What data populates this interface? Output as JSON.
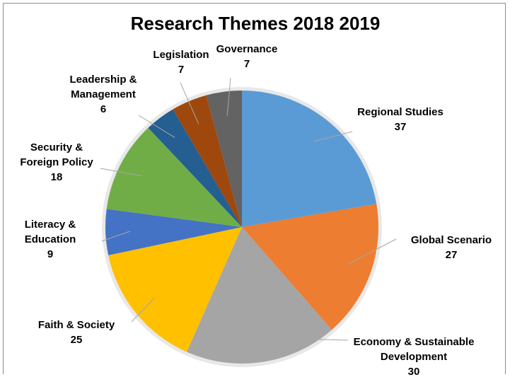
{
  "chart_data": {
    "type": "pie",
    "title": "Research Themes 2018 2019",
    "start_angle_deg": 0,
    "direction": "clockwise",
    "legend": "none",
    "slices": [
      {
        "label_lines": [
          "Regional Studies"
        ],
        "value": 37,
        "color": "#5b9bd5"
      },
      {
        "label_lines": [
          "Global Scenario"
        ],
        "value": 27,
        "color": "#ed7d31"
      },
      {
        "label_lines": [
          "Economy & Sustainable",
          "Development"
        ],
        "value": 30,
        "color": "#a5a5a5"
      },
      {
        "label_lines": [
          "Faith & Society"
        ],
        "value": 25,
        "color": "#ffc000"
      },
      {
        "label_lines": [
          "Literacy &",
          "Education"
        ],
        "value": 9,
        "color": "#4472c4"
      },
      {
        "label_lines": [
          "Security &",
          "Foreign Policy"
        ],
        "value": 18,
        "color": "#70ad47"
      },
      {
        "label_lines": [
          "Leadership &",
          "Management"
        ],
        "value": 6,
        "color": "#255e91"
      },
      {
        "label_lines": [
          "Legislation"
        ],
        "value": 7,
        "color": "#9e480e"
      },
      {
        "label_lines": [
          "Governance"
        ],
        "value": 7,
        "color": "#636363"
      }
    ]
  }
}
